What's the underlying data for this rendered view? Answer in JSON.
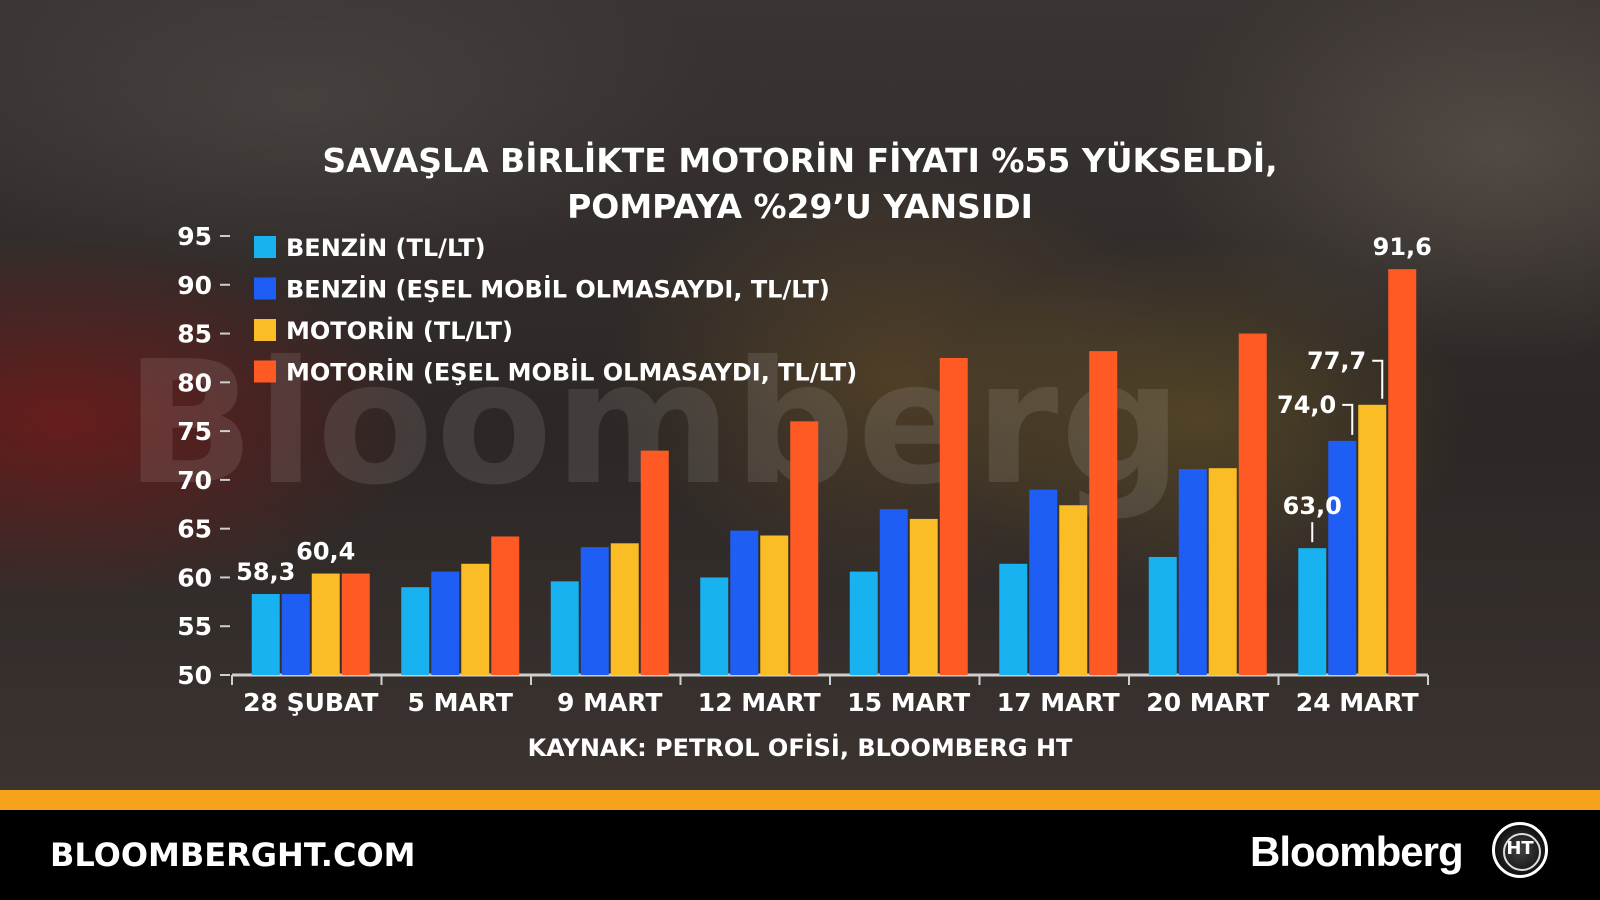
{
  "header": {
    "title_line1": "SAVAŞLA BİRLİKTE MOTORİN FİYATI %55 YÜKSELDİ,",
    "title_line2": "POMPAYA %29’U YANSIDI"
  },
  "watermark": "Bloomberg",
  "source": "KAYNAK: PETROL OFİSİ, BLOOMBERG HT",
  "footer": {
    "url": "BLOOMBERGHT.COM",
    "brand": "Bloomberg",
    "badge": "HT"
  },
  "colors": {
    "stripe": "#f7a21b",
    "axis": "#cfcfcf",
    "text": "#ffffff"
  },
  "chart_data": {
    "type": "bar",
    "categories": [
      "28 ŞUBAT",
      "5 MART",
      "9 MART",
      "12 MART",
      "15 MART",
      "17 MART",
      "20 MART",
      "24 MART"
    ],
    "series": [
      {
        "name": "BENZİN (TL/LT)",
        "color": "#19b2f0",
        "values": [
          58.3,
          59.0,
          59.6,
          60.0,
          60.6,
          61.4,
          62.1,
          63.0
        ]
      },
      {
        "name": "BENZİN (EŞEL MOBİL OLMASAYDI, TL/LT)",
        "color": "#1f5ef5",
        "values": [
          58.3,
          60.6,
          63.1,
          64.8,
          67.0,
          69.0,
          71.1,
          74.0
        ]
      },
      {
        "name": "MOTORİN (TL/LT)",
        "color": "#fbbd25",
        "values": [
          60.4,
          61.4,
          63.5,
          64.3,
          66.0,
          67.4,
          71.2,
          77.7
        ]
      },
      {
        "name": "MOTORİN (EŞEL MOBİL OLMASAYDI, TL/LT)",
        "color": "#ff5a24",
        "values": [
          60.4,
          64.2,
          73.0,
          76.0,
          82.5,
          83.2,
          85.0,
          91.6
        ]
      }
    ],
    "data_labels": [
      {
        "category": 0,
        "series": 0,
        "text": "58,3"
      },
      {
        "category": 0,
        "series": 2,
        "text": "60,4"
      },
      {
        "category": 7,
        "series": 0,
        "text": "63,0"
      },
      {
        "category": 7,
        "series": 1,
        "text": "74,0"
      },
      {
        "category": 7,
        "series": 2,
        "text": "77,7"
      },
      {
        "category": 7,
        "series": 3,
        "text": "91,6"
      }
    ],
    "ylim": [
      50,
      95
    ],
    "yticks": [
      50,
      55,
      60,
      65,
      70,
      75,
      80,
      85,
      90,
      95
    ],
    "legend": "top-left",
    "grid": false
  }
}
